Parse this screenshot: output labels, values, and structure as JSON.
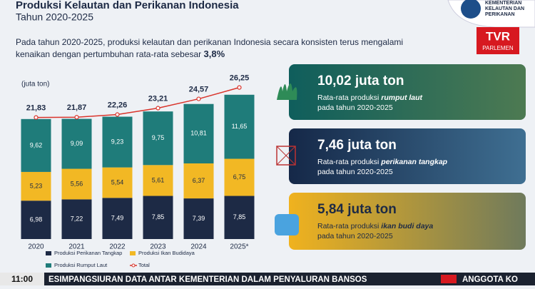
{
  "header": {
    "title": "Produksi Kelautan dan Perikanan Indonesia",
    "subtitle": "Tahun 2020-2025"
  },
  "intro": {
    "line1": "Pada tahun 2020-2025, produksi kelautan dan perikanan Indonesia secara konsisten terus mengalami",
    "line2": "kenaikan dengan pertumbuhan rata-rata sebesar",
    "highlight": "3,8%"
  },
  "logos": {
    "ministry": [
      "KEMENTERIAN",
      "KELAUTAN DAN",
      "PERIKANAN"
    ],
    "channel": "TVR",
    "channel_sub": "PARLEMEN"
  },
  "chart_data": {
    "type": "stacked-bar",
    "y_label": "(juta ton)",
    "categories": [
      "2020",
      "2021",
      "2022",
      "2023",
      "2024",
      "2025*"
    ],
    "ylim": [
      0,
      27
    ],
    "y2lim": [
      0,
      30
    ],
    "series": [
      {
        "name": "Produksi Perikanan Tangkap",
        "color": "#1d2a45",
        "values": [
          6.98,
          7.22,
          7.49,
          7.85,
          7.39,
          7.85
        ],
        "value_labels": [
          "6,98",
          "7,22",
          "7,49",
          "7,85",
          "7,39",
          "7,85"
        ]
      },
      {
        "name": "Produksi Ikan Budidaya",
        "color": "#f2b824",
        "values": [
          5.23,
          5.56,
          5.54,
          5.61,
          6.37,
          6.75
        ],
        "value_labels": [
          "5,23",
          "5,56",
          "5,54",
          "5,61",
          "6,37",
          "6,75"
        ]
      },
      {
        "name": "Produksi Rumput Laut",
        "color": "#1f7c7a",
        "values": [
          9.62,
          9.09,
          9.23,
          9.75,
          10.81,
          11.65
        ],
        "value_labels": [
          "9,62",
          "9,09",
          "9,23",
          "9,75",
          "10,81",
          "11,65"
        ]
      },
      {
        "name": "Total",
        "color": "#d9342b",
        "type": "line",
        "axis": "y2",
        "values": [
          21.83,
          21.87,
          22.26,
          23.21,
          24.57,
          26.25
        ],
        "value_labels": [
          "21,83",
          "21,87",
          "22,26",
          "23,21",
          "24,57",
          "26,25"
        ]
      }
    ]
  },
  "cards": [
    {
      "headline": "10,02 juta ton",
      "text_pre": "Rata-rata produksi",
      "text_bold": "rumput laut",
      "text_post": "pada tahun 2020-2025"
    },
    {
      "headline": "7,46 juta ton",
      "text_pre": "Rata-rata produksi",
      "text_bold": "perikanan tangkap",
      "text_post": "pada tahun 2020-2025"
    },
    {
      "headline": "5,84 juta ton",
      "text_pre": "Rata-rata produksi",
      "text_bold": "ikan budi daya",
      "text_post": "pada tahun 2020-2025"
    }
  ],
  "ticker": {
    "time": "11:00",
    "headline": "ESIMPANGSIURAN DATA ANTAR KEMENTERIAN DALAM PENYALURAN BANSOS",
    "next": "ANGGOTA KO"
  }
}
